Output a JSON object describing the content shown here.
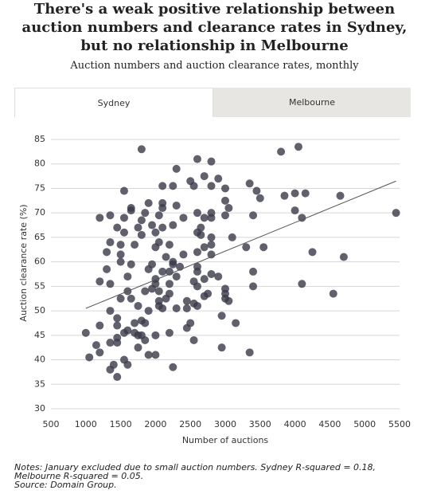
{
  "chart_data": {
    "type": "scatter",
    "title": "There's a weak positive relationship between auction numbers and clearance rates in Sydney, but no relationship in Melbourne",
    "subtitle": "Auction numbers and auction clearance rates, monthly",
    "tabs": [
      "Sydney",
      "Melbourne"
    ],
    "x_label": "Number of auctions",
    "y_label": "Auction clearance rate (%)",
    "notes": "Notes: January excluded due to small auction numbers. Sydney R-squared = 0.18, Melbourne R-squared = 0.05.",
    "source": "Source: Domain Group.",
    "color": "#3a3a48",
    "grid": true,
    "xlim": [
      500,
      5500
    ],
    "ylim": [
      30,
      85
    ],
    "xticks": [
      500,
      1000,
      1500,
      2000,
      2500,
      3000,
      3500,
      4000,
      4500,
      5000,
      5500
    ],
    "yticks": [
      30,
      35,
      40,
      45,
      50,
      55,
      60,
      65,
      70,
      75,
      80,
      85
    ],
    "trendline": {
      "color": "#555555",
      "x": [
        1000,
        5450
      ],
      "values": [
        50.5,
        76.5
      ]
    },
    "x": [
      1800,
      2600,
      2800,
      2300,
      2700,
      2500,
      2550,
      2800,
      2900,
      3000,
      3350,
      3450,
      3800,
      4050,
      3850,
      4000,
      4150,
      4650,
      1550,
      2100,
      2250,
      3000,
      3050,
      3500,
      1900,
      1650,
      1650,
      2100,
      2100,
      2300,
      1850,
      1350,
      1200,
      1550,
      1800,
      2050,
      2400,
      2600,
      2700,
      2800,
      2800,
      3000,
      3400,
      4000,
      4100,
      5450,
      1450,
      1750,
      1950,
      2100,
      2250,
      2650,
      1550,
      1800,
      2000,
      2600,
      2650,
      2800,
      3100,
      1350,
      1500,
      1700,
      2000,
      2050,
      2200,
      2700,
      2800,
      3300,
      3550,
      1300,
      1500,
      2150,
      2400,
      2600,
      2800,
      4250,
      4700,
      1500,
      1650,
      1950,
      2250,
      2250,
      2350,
      2600,
      1300,
      1900,
      2100,
      2200,
      2600,
      2800,
      3400,
      1600,
      2000,
      2300,
      2550,
      2700,
      2900,
      1200,
      1350,
      2000,
      2200,
      2600,
      3000,
      3400,
      4100,
      1600,
      1850,
      1950,
      2050,
      2200,
      2700,
      2750,
      3000,
      3000,
      3050,
      4550,
      1500,
      1650,
      2050,
      2150,
      2550,
      2600,
      2450,
      2300,
      1750,
      1900,
      2050,
      2100,
      2450,
      1350,
      2950,
      1450,
      1800,
      1850,
      2500,
      1700,
      1200,
      1450,
      3150,
      1700,
      2000,
      2200,
      2450,
      1000,
      1550,
      1600,
      1450,
      1750,
      1800,
      1850,
      2550,
      1150,
      1350,
      1450,
      1750,
      2950,
      1200,
      1900,
      1050,
      2000,
      1550,
      3350,
      1400,
      1600,
      1350,
      2250,
      1450
    ],
    "values": [
      83,
      81,
      80.5,
      79,
      77.5,
      76.5,
      75.5,
      75.5,
      77,
      75,
      76,
      74.5,
      82.5,
      83.5,
      73.5,
      74,
      74,
      73.5,
      74.5,
      75.5,
      75.5,
      72.5,
      71,
      73,
      72,
      71,
      70.5,
      72,
      71,
      71.5,
      70,
      69.5,
      69,
      69,
      68.5,
      69.5,
      69,
      70,
      69,
      70,
      69,
      69.5,
      69.5,
      70.5,
      69,
      70,
      67,
      67,
      67.5,
      67,
      67.5,
      67,
      66,
      65.5,
      66,
      66,
      65.5,
      65,
      65,
      64,
      63.5,
      63.5,
      63,
      64,
      63.5,
      63,
      63.5,
      63,
      63,
      62,
      61.5,
      61,
      61.5,
      62,
      61.5,
      62,
      61,
      60,
      59.5,
      59.5,
      59.5,
      60,
      59,
      59,
      58.5,
      58.5,
      58,
      58,
      58,
      57.5,
      58,
      57,
      56.5,
      57,
      56,
      56.5,
      57,
      56,
      55.5,
      55.5,
      55.5,
      55,
      54.5,
      55,
      55.5,
      54,
      54,
      54.5,
      54,
      53.5,
      53,
      53.5,
      53.5,
      52.5,
      52,
      53.5,
      52.5,
      52.5,
      52,
      52.5,
      51.5,
      51,
      52,
      50.5,
      51,
      50,
      51,
      50.5,
      50.5,
      50,
      49,
      48.5,
      48,
      47.5,
      47.5,
      47.5,
      47,
      47,
      47.5,
      45.5,
      45,
      45.5,
      46.5,
      45.5,
      45.5,
      46,
      44.5,
      45,
      45,
      44,
      44,
      43,
      43.5,
      43.5,
      42.5,
      42.5,
      41.5,
      41,
      40.5,
      41,
      40,
      41.5,
      39,
      39,
      38,
      38.5,
      36.5
    ]
  }
}
